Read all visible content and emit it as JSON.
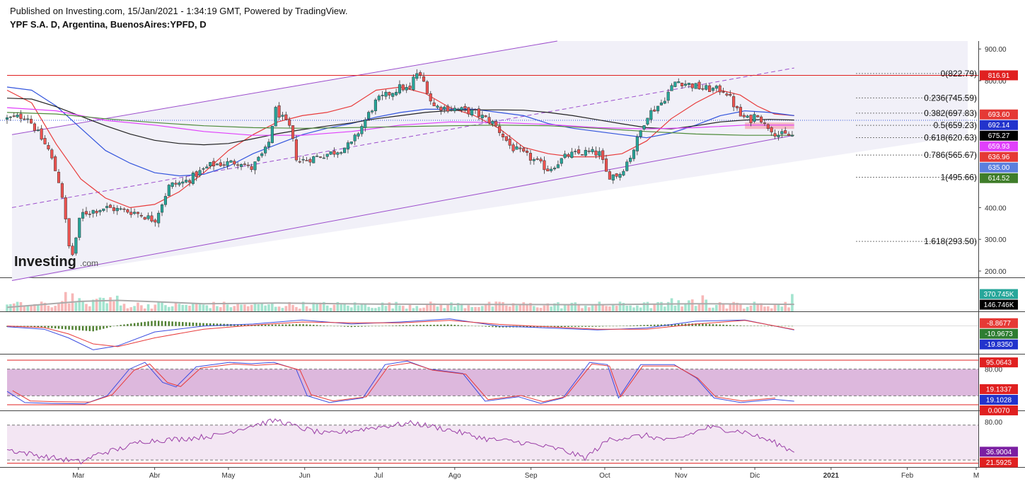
{
  "header": {
    "published": "Published on Investing.com, 15/Jan/2021 - 1:34:19 GMT, Powered by TradingView.",
    "symbol": "YPF S.A. D, Argentina, BuenosAires:YPFD, D"
  },
  "logo": {
    "text": "Investing",
    "suffix": ".com"
  },
  "x_axis": {
    "labels": [
      {
        "label": "Mar",
        "day": 29
      },
      {
        "label": "Abr",
        "day": 60
      },
      {
        "label": "May",
        "day": 90
      },
      {
        "label": "Jun",
        "day": 121
      },
      {
        "label": "Jul",
        "day": 151
      },
      {
        "label": "Ago",
        "day": 182
      },
      {
        "label": "Sep",
        "day": 213
      },
      {
        "label": "Oct",
        "day": 243
      },
      {
        "label": "Nov",
        "day": 274
      },
      {
        "label": "Dic",
        "day": 304
      },
      {
        "label": "2021",
        "day": 335,
        "bold": true
      },
      {
        "label": "Feb",
        "day": 366
      },
      {
        "label": "M",
        "day": 394
      }
    ]
  },
  "colors": {
    "up": "#26a69a",
    "down": "#ef5350",
    "vol_up": "#a3e4cf",
    "vol_down": "#f7b7b7",
    "channel": "#9c4dcc",
    "ma_fast": "#e83b3b",
    "ma_blue": "#3355dd",
    "ma_black": "#222222",
    "ma_pink": "#e040fb",
    "ma_green": "#4e8b3a",
    "res_line": "#e02020",
    "pink_zone": "#f4a7b5",
    "macd_hist": "#4e7f2f",
    "stoch_k": "#3a4be0",
    "stoch_d": "#e83b3b",
    "rsi_line": "#9a3ea6"
  },
  "chart_data": {
    "type": "candlestick",
    "price": {
      "ylim": [
        180,
        925
      ],
      "ticks": [
        900,
        800,
        400,
        300,
        200
      ],
      "ohlc_segments": [
        [
          0,
          680
        ],
        [
          8,
          690
        ],
        [
          17,
          580
        ],
        [
          22,
          460
        ],
        [
          26,
          230
        ],
        [
          30,
          380
        ],
        [
          40,
          400
        ],
        [
          52,
          385
        ],
        [
          60,
          360
        ],
        [
          66,
          470
        ],
        [
          72,
          480
        ],
        [
          83,
          535
        ],
        [
          95,
          545
        ],
        [
          99,
          520
        ],
        [
          106,
          590
        ],
        [
          109,
          710
        ],
        [
          115,
          650
        ],
        [
          118,
          545
        ],
        [
          121,
          550
        ],
        [
          133,
          575
        ],
        [
          140,
          600
        ],
        [
          150,
          735
        ],
        [
          160,
          780
        ],
        [
          164,
          770
        ],
        [
          166,
          830
        ],
        [
          170,
          790
        ],
        [
          173,
          720
        ],
        [
          183,
          710
        ],
        [
          190,
          700
        ],
        [
          198,
          665
        ],
        [
          205,
          590
        ],
        [
          213,
          555
        ],
        [
          220,
          520
        ],
        [
          228,
          565
        ],
        [
          236,
          575
        ],
        [
          241,
          570
        ],
        [
          244,
          500
        ],
        [
          249,
          505
        ],
        [
          254,
          570
        ],
        [
          260,
          690
        ],
        [
          266,
          730
        ],
        [
          272,
          800
        ],
        [
          283,
          775
        ],
        [
          292,
          770
        ],
        [
          298,
          690
        ],
        [
          302,
          675
        ],
        [
          305,
          700
        ],
        [
          308,
          660
        ],
        [
          310,
          655
        ],
        [
          313,
          630
        ],
        [
          320,
          626
        ]
      ],
      "bull_channel": {
        "lower": [
          [
            2,
            170
          ],
          [
            320,
            628
          ]
        ],
        "upper": [
          [
            2,
            630
          ],
          [
            250,
            960
          ]
        ],
        "mid": [
          [
            2,
            400
          ],
          [
            320,
            840
          ]
        ]
      },
      "resistance": 816.91,
      "fibonacci": [
        {
          "label": "0(822.79)",
          "value": 822.79
        },
        {
          "label": "0.236(745.59)",
          "value": 745.59
        },
        {
          "label": "0.382(697.83)",
          "value": 697.83
        },
        {
          "label": "0.5(659.23)",
          "value": 659.23
        },
        {
          "label": "0.618(620.63)",
          "value": 620.63
        },
        {
          "label": "0.786(565.67)",
          "value": 565.67
        },
        {
          "label": "1(495.66)",
          "value": 495.66
        },
        {
          "label": "1.618(293.50)",
          "value": 293.5
        }
      ],
      "pink_zone": [
        648,
        668
      ],
      "moving_averages": [
        {
          "id": "ma_fast",
          "points": [
            [
              0,
              770
            ],
            [
              10,
              730
            ],
            [
              20,
              600
            ],
            [
              30,
              490
            ],
            [
              40,
              430
            ],
            [
              50,
              400
            ],
            [
              60,
              410
            ],
            [
              70,
              450
            ],
            [
              80,
              510
            ],
            [
              90,
              580
            ],
            [
              100,
              630
            ],
            [
              110,
              670
            ],
            [
              120,
              690
            ],
            [
              130,
              700
            ],
            [
              140,
              720
            ],
            [
              150,
              770
            ],
            [
              160,
              780
            ],
            [
              170,
              760
            ],
            [
              180,
              715
            ],
            [
              190,
              690
            ],
            [
              200,
              650
            ],
            [
              210,
              590
            ],
            [
              220,
              570
            ],
            [
              230,
              560
            ],
            [
              240,
              560
            ],
            [
              250,
              570
            ],
            [
              260,
              610
            ],
            [
              270,
              680
            ],
            [
              280,
              730
            ],
            [
              290,
              770
            ],
            [
              298,
              755
            ],
            [
              305,
              720
            ],
            [
              312,
              695
            ],
            [
              320,
              690
            ]
          ]
        },
        {
          "id": "ma_blue",
          "points": [
            [
              0,
              780
            ],
            [
              10,
              770
            ],
            [
              20,
              720
            ],
            [
              30,
              650
            ],
            [
              40,
              580
            ],
            [
              50,
              540
            ],
            [
              60,
              510
            ],
            [
              70,
              500
            ],
            [
              80,
              505
            ],
            [
              90,
              530
            ],
            [
              100,
              570
            ],
            [
              110,
              600
            ],
            [
              120,
              630
            ],
            [
              130,
              650
            ],
            [
              140,
              665
            ],
            [
              150,
              685
            ],
            [
              160,
              700
            ],
            [
              170,
              710
            ],
            [
              180,
              710
            ],
            [
              190,
              710
            ],
            [
              200,
              700
            ],
            [
              210,
              690
            ],
            [
              220,
              665
            ],
            [
              230,
              650
            ],
            [
              240,
              640
            ],
            [
              250,
              630
            ],
            [
              260,
              620
            ],
            [
              270,
              635
            ],
            [
              280,
              660
            ],
            [
              290,
              690
            ],
            [
              300,
              705
            ],
            [
              310,
              700
            ],
            [
              320,
              690
            ]
          ]
        },
        {
          "id": "ma_black",
          "points": [
            [
              0,
              745
            ],
            [
              10,
              742
            ],
            [
              20,
              718
            ],
            [
              30,
              688
            ],
            [
              40,
              658
            ],
            [
              50,
              632
            ],
            [
              60,
              612
            ],
            [
              70,
              602
            ],
            [
              80,
              598
            ],
            [
              90,
              602
            ],
            [
              100,
              617
            ],
            [
              110,
              633
            ],
            [
              120,
              646
            ],
            [
              130,
              657
            ],
            [
              140,
              667
            ],
            [
              150,
              680
            ],
            [
              160,
              690
            ],
            [
              170,
              700
            ],
            [
              180,
              706
            ],
            [
              190,
              708
            ],
            [
              200,
              708
            ],
            [
              210,
              707
            ],
            [
              220,
              700
            ],
            [
              230,
              690
            ],
            [
              240,
              677
            ],
            [
              250,
              664
            ],
            [
              260,
              652
            ],
            [
              270,
              648
            ],
            [
              280,
              658
            ],
            [
              290,
              670
            ],
            [
              300,
              676
            ],
            [
              310,
              678
            ],
            [
              320,
              676
            ]
          ]
        },
        {
          "id": "ma_pink",
          "points": [
            [
              0,
              715
            ],
            [
              20,
              705
            ],
            [
              40,
              675
            ],
            [
              60,
              660
            ],
            [
              80,
              640
            ],
            [
              100,
              628
            ],
            [
              120,
              628
            ],
            [
              140,
              640
            ],
            [
              160,
              660
            ],
            [
              180,
              670
            ],
            [
              200,
              668
            ],
            [
              220,
              662
            ],
            [
              240,
              652
            ],
            [
              260,
              648
            ],
            [
              280,
              652
            ],
            [
              300,
              660
            ],
            [
              320,
              660
            ]
          ]
        },
        {
          "id": "ma_green",
          "points": [
            [
              0,
              700
            ],
            [
              20,
              695
            ],
            [
              40,
              680
            ],
            [
              60,
              668
            ],
            [
              80,
              658
            ],
            [
              100,
              652
            ],
            [
              120,
              650
            ],
            [
              140,
              652
            ],
            [
              160,
              655
            ],
            [
              180,
              658
            ],
            [
              200,
              660
            ],
            [
              220,
              658
            ],
            [
              240,
              650
            ],
            [
              260,
              640
            ],
            [
              280,
              632
            ],
            [
              300,
              628
            ],
            [
              320,
              628
            ]
          ]
        }
      ],
      "price_tags": [
        {
          "label": "816.91",
          "value": 816.91,
          "color": "#e02020"
        },
        {
          "label": "693.60",
          "value": 693.6,
          "color": "#e53935"
        },
        {
          "label": "692.14",
          "value": 692.14,
          "color": "#2233cc"
        },
        {
          "label": "675.27",
          "value": 675.27,
          "color": "#000000"
        },
        {
          "label": "659.93",
          "value": 659.93,
          "color": "#e040fb"
        },
        {
          "label": "636.96",
          "value": 636.96,
          "color": "#e53935"
        },
        {
          "label": "635.00",
          "value": 635.0,
          "color": "#5b7fdd"
        },
        {
          "label": "614.52",
          "value": 614.52,
          "color": "#3f7d2a"
        }
      ]
    },
    "volume": {
      "ylim": [
        0,
        1000
      ],
      "tags": [
        {
          "label": "370.745K",
          "value": 520,
          "color": "#26a69a"
        },
        {
          "label": "146.746K",
          "value": 210,
          "color": "#000000"
        }
      ]
    },
    "macd": {
      "ylim": [
        -70,
        35
      ],
      "tags": [
        {
          "label": "-8.8677",
          "value": 7,
          "color": "#e53935"
        },
        {
          "label": "-10.9673",
          "value": -8,
          "color": "#2e7d32"
        },
        {
          "label": "-19.8350",
          "value": -24,
          "color": "#2233cc"
        }
      ]
    },
    "stochastic": {
      "ylim": [
        0,
        100
      ],
      "ticks": [
        80
      ],
      "bands": [
        20,
        80
      ],
      "red_lines": [
        0,
        100
      ],
      "tags": [
        {
          "label": "95.0643",
          "value": 95,
          "color": "#e02020"
        },
        {
          "label": "19.1337",
          "value": 35,
          "color": "#e02020"
        },
        {
          "label": "19.1028",
          "value": 19,
          "color": "#2233cc"
        },
        {
          "label": "0.0070",
          "value": 3,
          "color": "#e02020"
        }
      ]
    },
    "rsi": {
      "ylim": [
        15,
        95
      ],
      "ticks": [
        80
      ],
      "bands": [
        30,
        70
      ],
      "red_lines": [
        20.5
      ],
      "tags": [
        {
          "label": "36.9004",
          "value": 36.9,
          "color": "#7b1fa2"
        },
        {
          "label": "21.5925",
          "value": 21.6,
          "color": "#e02020"
        }
      ]
    }
  }
}
